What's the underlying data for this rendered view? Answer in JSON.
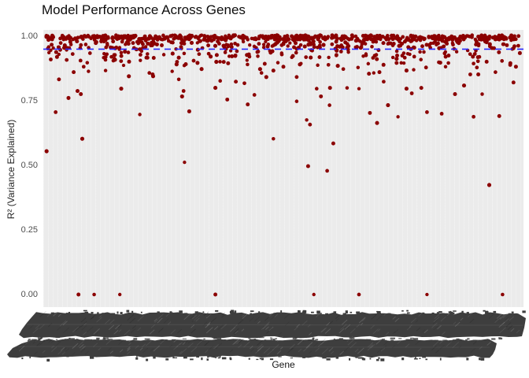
{
  "chart_data": {
    "type": "scatter",
    "title": "Model Performance Across Genes",
    "xlabel": "Gene",
    "ylabel": "R² (Variance Explained)",
    "ylim": [
      0.0,
      1.0
    ],
    "grid": "ggplot-light-panel",
    "legend": "none",
    "y_ticks": [
      {
        "label": "1.00",
        "value": 1.0
      },
      {
        "label": "0.75",
        "value": 0.75
      },
      {
        "label": "0.50",
        "value": 0.5
      },
      {
        "label": "0.25",
        "value": 0.25
      },
      {
        "label": "0.00",
        "value": 0.0
      }
    ],
    "x_axis": {
      "tick_labels_legible": false,
      "description": "hundreds of overlapping rotated gene-name labels rendered as a solid dark smear"
    },
    "threshold_line": {
      "value": 0.95,
      "style": "dashed",
      "dash": [
        8,
        6
      ],
      "width": 1.6
    },
    "dense_band_layers": [
      {
        "n": 450,
        "min": 0.987,
        "max": 1.004
      },
      {
        "n": 230,
        "min": 0.955,
        "max": 0.988
      },
      {
        "n": 120,
        "min": 0.916,
        "max": 0.957
      },
      {
        "n": 55,
        "min": 0.885,
        "max": 0.92
      }
    ],
    "outlier_points": [
      [
        0.028,
        0.833
      ],
      [
        0.059,
        0.861
      ],
      [
        0.08,
        0.882
      ],
      [
        0.09,
        0.864
      ],
      [
        0.067,
        0.788
      ],
      [
        0.074,
        0.776
      ],
      [
        0.048,
        0.761
      ],
      [
        0.021,
        0.706
      ],
      [
        0.077,
        0.603
      ],
      [
        0.126,
        0.867
      ],
      [
        0.159,
        0.797
      ],
      [
        0.175,
        0.845
      ],
      [
        0.198,
        0.697
      ],
      [
        0.266,
        0.864
      ],
      [
        0.28,
        0.833
      ],
      [
        0.29,
        0.788
      ],
      [
        0.287,
        0.767
      ],
      [
        0.302,
        0.709
      ],
      [
        0.328,
        0.873
      ],
      [
        0.225,
        0.852
      ],
      [
        0.226,
        0.845
      ],
      [
        0.218,
        0.858
      ],
      [
        0.002,
        0.555
      ],
      [
        0.292,
        0.512
      ],
      [
        0.479,
        0.603
      ],
      [
        0.451,
        0.873
      ],
      [
        0.454,
        0.858
      ],
      [
        0.479,
        0.867
      ],
      [
        0.464,
        0.842
      ],
      [
        0.528,
        0.842
      ],
      [
        0.367,
        0.827
      ],
      [
        0.357,
        0.8
      ],
      [
        0.4,
        0.824
      ],
      [
        0.418,
        0.818
      ],
      [
        0.439,
        0.773
      ],
      [
        0.382,
        0.755
      ],
      [
        0.425,
        0.736
      ],
      [
        0.528,
        0.748
      ],
      [
        0.57,
        0.797
      ],
      [
        0.579,
        0.767
      ],
      [
        0.598,
        0.8
      ],
      [
        0.597,
        0.733
      ],
      [
        0.626,
        0.873
      ],
      [
        0.634,
        0.8
      ],
      [
        0.657,
        0.879
      ],
      [
        0.659,
        0.797
      ],
      [
        0.549,
        0.676
      ],
      [
        0.556,
        0.658
      ],
      [
        0.5,
        0.882
      ],
      [
        0.68,
        0.855
      ],
      [
        0.69,
        0.858
      ],
      [
        0.702,
        0.861
      ],
      [
        0.711,
        0.824
      ],
      [
        0.759,
        0.867
      ],
      [
        0.774,
        0.87
      ],
      [
        0.8,
        0.879
      ],
      [
        0.841,
        0.882
      ],
      [
        0.759,
        0.797
      ],
      [
        0.77,
        0.779
      ],
      [
        0.79,
        0.8
      ],
      [
        0.861,
        0.776
      ],
      [
        0.88,
        0.809
      ],
      [
        0.893,
        0.852
      ],
      [
        0.907,
        0.879
      ],
      [
        0.91,
        0.852
      ],
      [
        0.918,
        0.776
      ],
      [
        0.946,
        0.861
      ],
      [
        0.989,
        0.882
      ],
      [
        0.984,
        0.821
      ],
      [
        0.72,
        0.733
      ],
      [
        0.741,
        0.688
      ],
      [
        0.682,
        0.703
      ],
      [
        0.697,
        0.664
      ],
      [
        0.802,
        0.706
      ],
      [
        0.833,
        0.7
      ],
      [
        0.9,
        0.688
      ],
      [
        0.954,
        0.691
      ],
      [
        0.605,
        0.585
      ],
      [
        0.552,
        0.497
      ],
      [
        0.592,
        0.479
      ],
      [
        0.933,
        0.424
      ],
      [
        0.069,
        0.0
      ],
      [
        0.102,
        0.0
      ],
      [
        0.156,
        0.0
      ],
      [
        0.357,
        0.0
      ],
      [
        0.564,
        0.0
      ],
      [
        0.659,
        0.0
      ],
      [
        0.802,
        0.0
      ],
      [
        0.961,
        0.0
      ]
    ],
    "colors": {
      "point": "#8B0000",
      "threshold": "#2A2AFF",
      "panel_bg": "#EBEBEB",
      "smear": "#3E3E3E",
      "title_text": "#0D0D0D",
      "tick_text": "#4D4D4D",
      "axis_title_text": "#262626"
    }
  }
}
